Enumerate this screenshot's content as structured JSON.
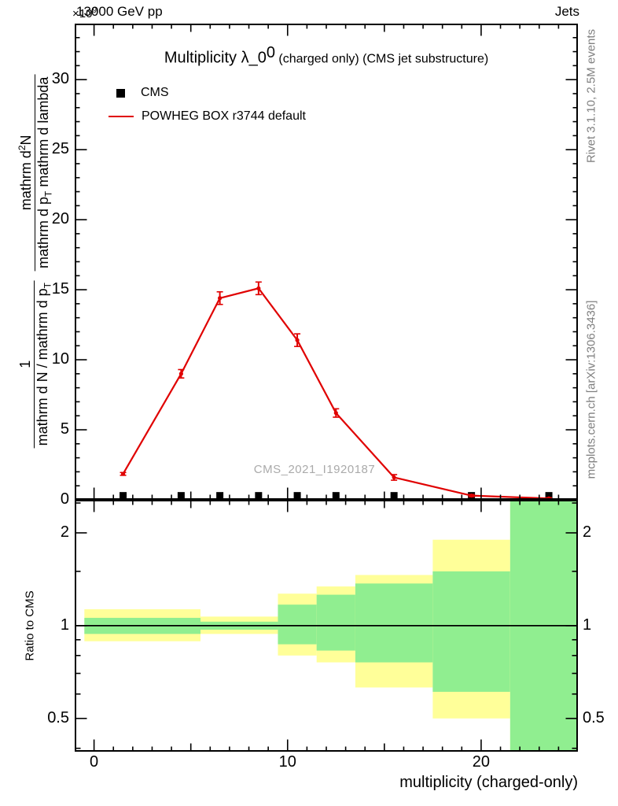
{
  "header": {
    "beam_energy": "13000 GeV pp",
    "topic": "Jets",
    "scale_base": "×10",
    "scale_exp": "9"
  },
  "title": {
    "main": "Multiplicity λ_0",
    "sup": "0",
    "rest": " (charged only) (CMS jet substructure)"
  },
  "legend": {
    "data_label": "CMS",
    "mc_label": "POWHEG BOX r3744 default"
  },
  "watermark": "CMS_2021_I1920187",
  "side_notes": {
    "rivet": "Rivet 3.1.10,  2.5M events",
    "mcplots": "mcplots.cern.ch [arXiv:1306.3436]"
  },
  "axes": {
    "xlabel": "multiplicity (charged-only)",
    "ratio_ylabel": "Ratio to CMS",
    "ylabel": {
      "frac1_num": "1",
      "frac1_den_a": "mathrm d N / mathrm d p",
      "frac1_den_sub": "T",
      "frac2_num_a": "mathrm d",
      "frac2_num_sup": "2",
      "frac2_num_b": "N",
      "frac2_den_a": "mathrm d p",
      "frac2_den_sub": "T",
      "frac2_den_b": " mathrm d lambda"
    }
  },
  "colors": {
    "mc_line": "#e00000",
    "data_marker": "#000000",
    "band_yellow": "#ffff99",
    "band_green": "#90ee90",
    "note_gray": "#808080",
    "watermark_gray": "#aaaaaa"
  },
  "chart_data": [
    {
      "type": "line",
      "title": "Multiplicity lambda_0^0 (charged only) (CMS jet substructure)",
      "xlabel": "multiplicity (charged-only)",
      "ylabel": "1/(dN/dp_T) d^2N/(dp_T dlambda) x10^9",
      "xlim": [
        -1,
        25
      ],
      "ylim": [
        0,
        34
      ],
      "xticks": [
        0,
        10,
        20
      ],
      "xticks_medium": [
        5,
        15,
        25
      ],
      "yticks": [
        0,
        5,
        10,
        15,
        20,
        25,
        30
      ],
      "grid": false,
      "legend_position": "top-left",
      "series": [
        {
          "name": "CMS",
          "type": "scatter",
          "marker": "square",
          "color": "#000000",
          "x": [
            1.5,
            4.5,
            6.5,
            8.5,
            10.5,
            12.5,
            15.5,
            19.5,
            23.5
          ],
          "y": [
            0.3,
            0.3,
            0.3,
            0.3,
            0.3,
            0.3,
            0.3,
            0.3,
            0.3
          ]
        },
        {
          "name": "POWHEG BOX r3744 default",
          "type": "line",
          "color": "#e00000",
          "x": [
            1.5,
            4.5,
            6.5,
            8.5,
            10.5,
            12.5,
            15.5,
            19.5,
            23.5
          ],
          "y": [
            1.85,
            9.0,
            14.4,
            15.1,
            11.4,
            6.2,
            1.6,
            0.3,
            0.1
          ],
          "yerr": [
            0.1,
            0.3,
            0.45,
            0.45,
            0.45,
            0.3,
            0.2,
            0.08,
            0.05
          ]
        }
      ]
    },
    {
      "type": "ratio-band",
      "ylabel": "Ratio to CMS",
      "yscale": "log",
      "xlim": [
        -1,
        25
      ],
      "ylim": [
        0.39,
        2.56
      ],
      "yticks": [
        0.5,
        1,
        2
      ],
      "yticks_minor": [
        0.4,
        0.6,
        0.7,
        0.8,
        0.9,
        1.5,
        2.5
      ],
      "unity": 1,
      "bands": [
        {
          "xlo": -0.5,
          "xhi": 5.5,
          "outer": [
            0.89,
            1.13
          ],
          "inner": [
            0.94,
            1.06
          ]
        },
        {
          "xlo": 5.5,
          "xhi": 9.5,
          "outer": [
            0.94,
            1.07
          ],
          "inner": [
            0.97,
            1.03
          ]
        },
        {
          "xlo": 9.5,
          "xhi": 11.5,
          "outer": [
            0.8,
            1.27
          ],
          "inner": [
            0.87,
            1.17
          ]
        },
        {
          "xlo": 11.5,
          "xhi": 13.5,
          "outer": [
            0.76,
            1.34
          ],
          "inner": [
            0.83,
            1.26
          ]
        },
        {
          "xlo": 13.5,
          "xhi": 17.5,
          "outer": [
            0.63,
            1.46
          ],
          "inner": [
            0.76,
            1.37
          ]
        },
        {
          "xlo": 17.5,
          "xhi": 21.5,
          "outer": [
            0.5,
            1.9
          ],
          "inner": [
            0.61,
            1.5
          ]
        },
        {
          "xlo": 21.5,
          "xhi": 25.0,
          "outer": [
            0.39,
            2.56
          ],
          "inner": [
            0.39,
            2.56
          ]
        }
      ]
    }
  ]
}
